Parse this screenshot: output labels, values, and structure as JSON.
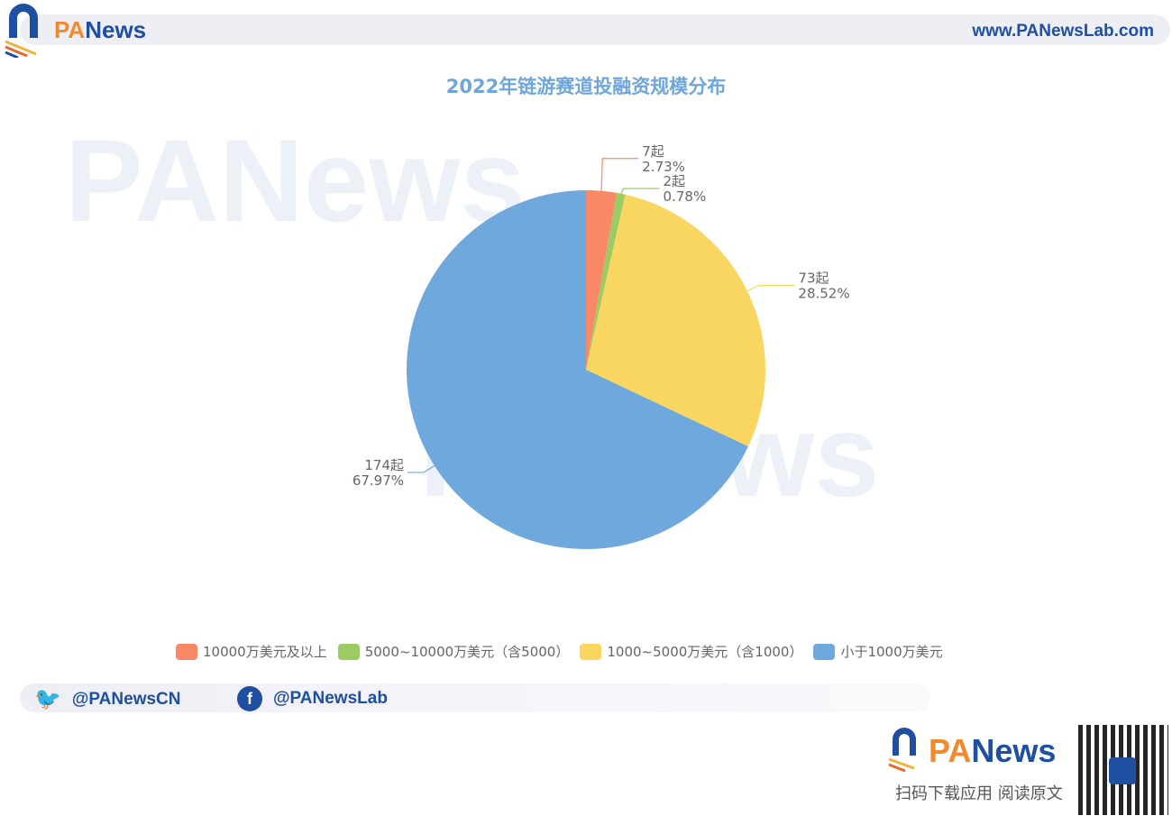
{
  "header": {
    "brand": "PANews",
    "brand_prefix": "PA",
    "brand_suffix": "News",
    "url": "www.PANewsLab.com"
  },
  "chart_data": {
    "type": "pie",
    "title": "2022年链游赛道投融资规模分布",
    "categories": [
      "10000万美元及以上",
      "5000~10000万美元（含5000）",
      "1000~5000万美元（含1000）",
      "小于1000万美元"
    ],
    "values": [
      7,
      2,
      73,
      174
    ],
    "value_labels": [
      "7起",
      "2起",
      "73起",
      "174起"
    ],
    "percent_labels": [
      "2.73%",
      "0.78%",
      "28.52%",
      "67.97%"
    ],
    "colors": [
      "#f98866",
      "#9bcb62",
      "#f8d660",
      "#6fa8dc"
    ],
    "legend_position": "bottom"
  },
  "footer": {
    "twitter": "@PANewsCN",
    "facebook": "@PANewsLab",
    "tagline": "扫码下载应用  阅读原文",
    "twitter_icon": "twitter-icon",
    "facebook_icon": "facebook-icon"
  }
}
